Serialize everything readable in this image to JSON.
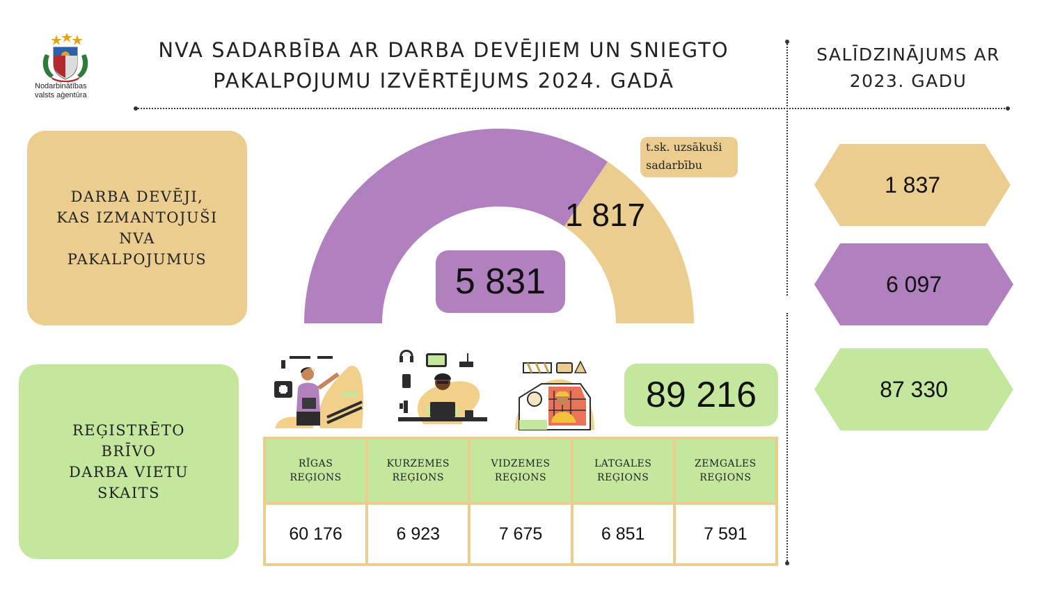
{
  "logo": {
    "line1": "Nodarbinātības",
    "line2": "valsts aģentūra"
  },
  "title": {
    "line1": "NVA SADARBĪBA AR DARBA DEVĒJIEM UN SNIEGTO",
    "line2": "PAKALPOJUMU IZVĒRTĒJUMS 2024. GADĀ"
  },
  "comparison_title": {
    "line1": "SALĪDZINĀJUMS AR",
    "line2": "2023. GADU"
  },
  "employers": {
    "label_lines": [
      "DARBA DEVĒJI,",
      "KAS IZMANTOJUŠI",
      "NVA",
      "PAKALPOJUMUS"
    ],
    "total": "5 831",
    "started": "1 817",
    "started_note_line1": "t.sk. uzsākuši",
    "started_note_line2": "sadarbību"
  },
  "chart_data": {
    "type": "pie",
    "labels": [
      "",
      "t.sk. uzsākuši sadarbību"
    ],
    "values": [
      4014,
      1817
    ],
    "total": 5831,
    "colors": [
      "#b181bf",
      "#ebcd8f"
    ]
  },
  "vacancies": {
    "label_lines": [
      "REĢISTRĒTO",
      "BRĪVO",
      "DARBA VIETU",
      "SKAITS"
    ],
    "total": "89 216",
    "regions": [
      {
        "line1": "RĪGAS",
        "line2": "REĢIONS",
        "value": "60 176"
      },
      {
        "line1": "KURZEMES",
        "line2": "REĢIONS",
        "value": "6 923"
      },
      {
        "line1": "VIDZEMES",
        "line2": "REĢIONS",
        "value": "7 675"
      },
      {
        "line1": "LATGALES",
        "line2": "REĢIONS",
        "value": "6 851"
      },
      {
        "line1": "ZEMGALES",
        "line2": "REĢIONS",
        "value": "7 591"
      }
    ]
  },
  "comparison_2023": {
    "started": "1 837",
    "employers": "6 097",
    "vacancies": "87 330"
  },
  "colors": {
    "tan": "#ebcd8f",
    "purple": "#b181bf",
    "green": "#c4e79e"
  }
}
